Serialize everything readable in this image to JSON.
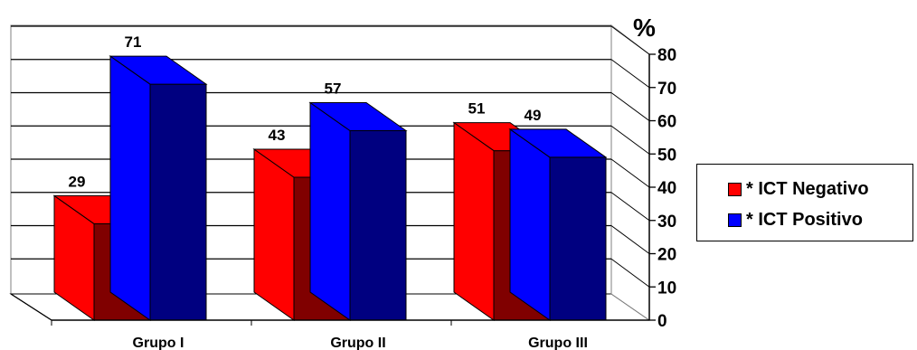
{
  "chart_data": {
    "type": "bar",
    "style": "3d-clustered",
    "unit_label": "%",
    "categories": [
      "Grupo I",
      "Grupo II",
      "Grupo III"
    ],
    "series": [
      {
        "name": "* ICT Negativo",
        "values": [
          29,
          43,
          51
        ],
        "color": "#ff0000",
        "dark_color": "#800000"
      },
      {
        "name": "* ICT Positivo",
        "values": [
          71,
          57,
          49
        ],
        "color": "#0000ff",
        "dark_color": "#000080"
      }
    ],
    "data_labels": [
      "29",
      "71",
      "43",
      "57",
      "51",
      "49"
    ],
    "y_ticks": [
      "0",
      "10",
      "20",
      "30",
      "40",
      "50",
      "60",
      "70",
      "80"
    ],
    "ylim": [
      0,
      80
    ],
    "grid": true,
    "legend_position": "right"
  }
}
